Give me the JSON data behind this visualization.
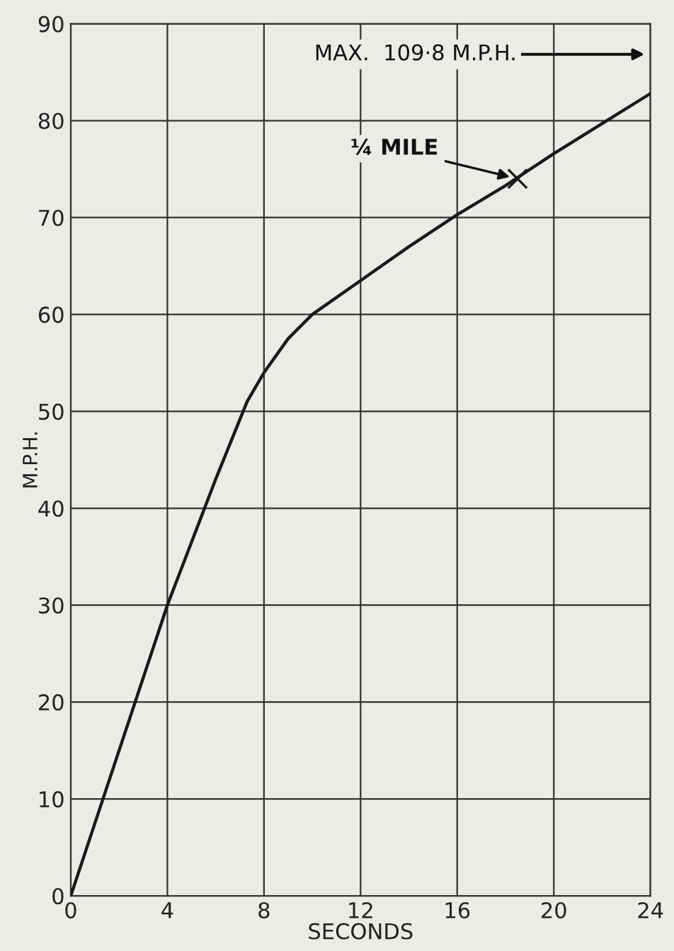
{
  "chart_data": {
    "type": "line",
    "xlabel": "SECONDS",
    "ylabel": "M.P.H.",
    "xlim": [
      0,
      24
    ],
    "ylim": [
      0,
      90
    ],
    "xticks": [
      0,
      4,
      8,
      12,
      16,
      20,
      24
    ],
    "yticks": [
      0,
      10,
      20,
      30,
      40,
      50,
      60,
      70,
      80,
      90
    ],
    "grid": true,
    "series": [
      {
        "color": "#1a1a1a",
        "x": [
          0,
          2,
          4,
          6,
          7.3,
          8,
          9,
          10,
          12,
          14,
          16,
          18,
          20,
          22,
          24
        ],
        "values": [
          0,
          15,
          30,
          43,
          51,
          54,
          57.5,
          60,
          63.5,
          67,
          70.3,
          73.3,
          76.6,
          79.7,
          82.8
        ]
      },
      {
        "type": "scatter",
        "marker": "cross",
        "color": "#1a1a1a",
        "x": [
          18.5
        ],
        "values": [
          74
        ]
      }
    ],
    "annotations": [
      {
        "text": "MAX.  109·8 M.P.H."
      },
      {
        "text": "¼ MILE",
        "x": 18.5,
        "y": 74
      }
    ]
  }
}
